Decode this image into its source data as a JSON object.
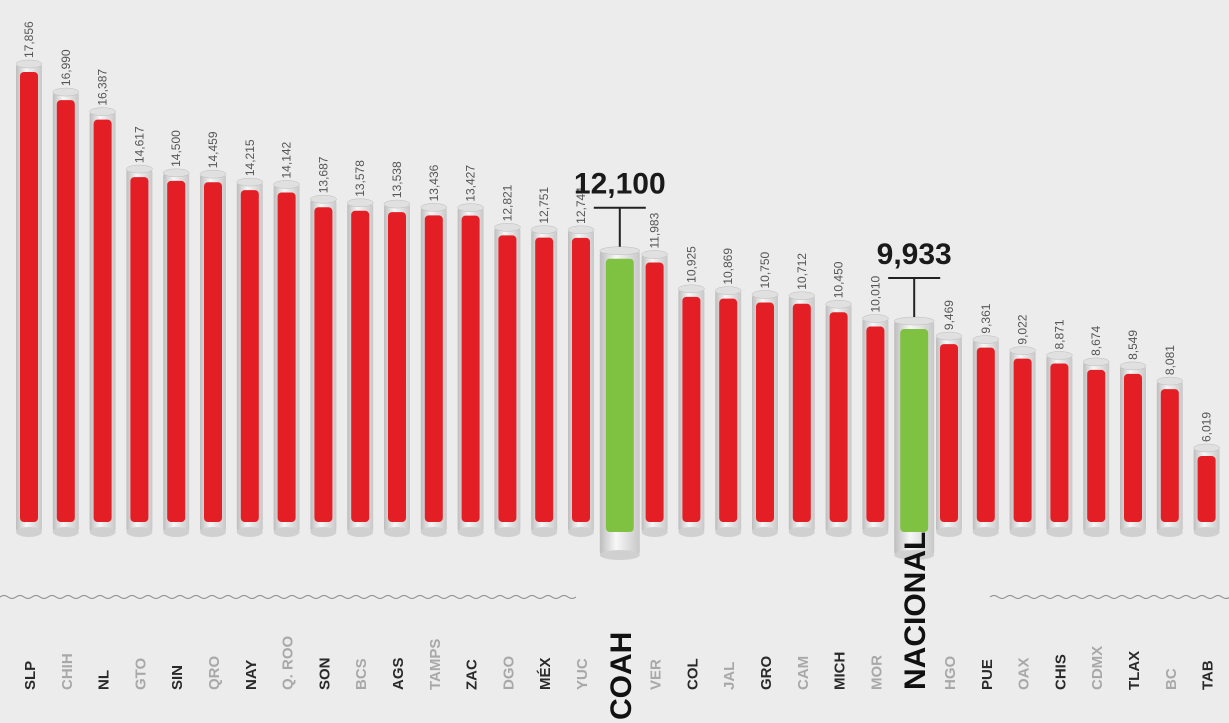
{
  "chart_data": {
    "type": "bar",
    "categories": [
      "SLP",
      "CHIH",
      "NL",
      "GTO",
      "SIN",
      "QRO",
      "NAY",
      "Q. ROO",
      "SON",
      "BCS",
      "AGS",
      "TAMPS",
      "ZAC",
      "DGO",
      "MÉX",
      "YUC",
      "COAH",
      "VER",
      "COL",
      "JAL",
      "GRO",
      "CAM",
      "MICH",
      "MOR",
      "NACIONAL",
      "HGO",
      "PUE",
      "OAX",
      "CHIS",
      "CDMX",
      "TLAX",
      "BC",
      "TAB"
    ],
    "values": [
      17856,
      16990,
      16387,
      14617,
      14500,
      14459,
      14215,
      14142,
      13687,
      13578,
      13538,
      13436,
      13427,
      12821,
      12751,
      12744,
      12100,
      11983,
      10925,
      10869,
      10750,
      10712,
      10450,
      10010,
      9933,
      9469,
      9361,
      9022,
      8871,
      8674,
      8549,
      8081,
      6019
    ],
    "value_labels": [
      "17,856",
      "16,990",
      "16,387",
      "14,617",
      "14,500",
      "14,459",
      "14,215",
      "14,142",
      "13,687",
      "13,578",
      "13,538",
      "13,436",
      "13,427",
      "12,821",
      "12,751",
      "12,744",
      "12,100",
      "11,983",
      "10,925",
      "10,869",
      "10,750",
      "10,712",
      "10,450",
      "10,010",
      "9,933",
      "9,469",
      "9,361",
      "9,022",
      "8,871",
      "8,674",
      "8,549",
      "8,081",
      "6,019"
    ],
    "colors": [
      "#e31e24",
      "#e31e24",
      "#e31e24",
      "#e31e24",
      "#e31e24",
      "#e31e24",
      "#e31e24",
      "#e31e24",
      "#e31e24",
      "#e31e24",
      "#e31e24",
      "#e31e24",
      "#e31e24",
      "#e31e24",
      "#e31e24",
      "#e31e24",
      "#7fc241",
      "#e31e24",
      "#e31e24",
      "#e31e24",
      "#e31e24",
      "#e31e24",
      "#e31e24",
      "#e31e24",
      "#7fc241",
      "#e31e24",
      "#e31e24",
      "#e31e24",
      "#e31e24",
      "#e31e24",
      "#e31e24",
      "#e31e24",
      "#e31e24"
    ]
  }
}
